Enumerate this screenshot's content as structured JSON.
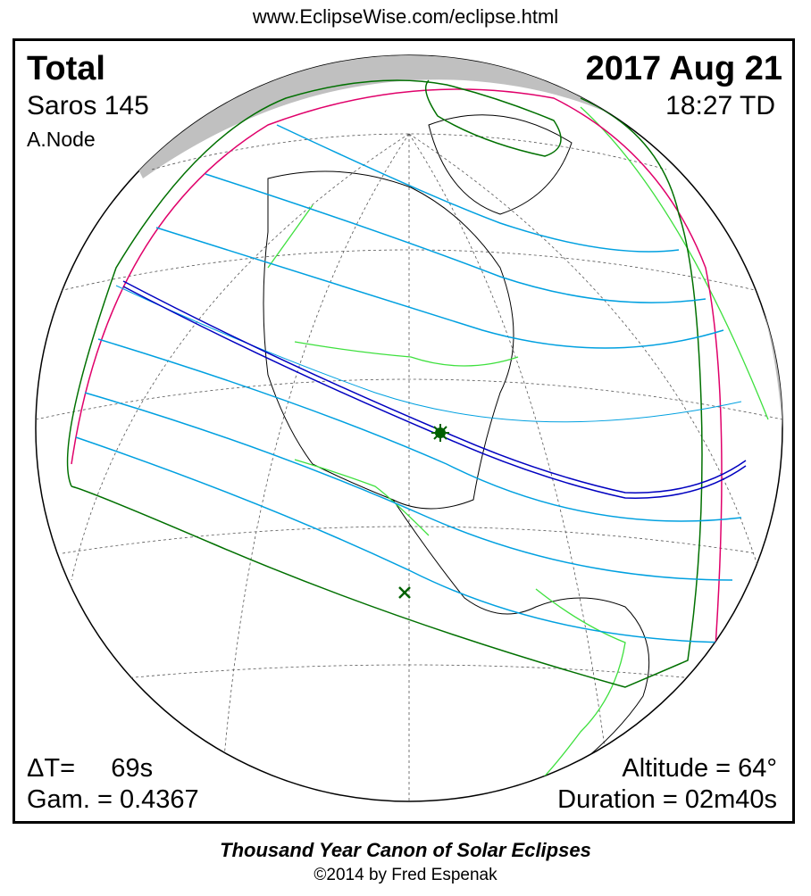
{
  "header": {
    "url": "www.EclipseWise.com/eclipse.html"
  },
  "eclipse": {
    "type": "Total",
    "saros": "Saros 145",
    "node": "A.Node",
    "date": "2017 Aug 21",
    "time": "18:27 TD",
    "delta_t": "ΔT=     69s",
    "gamma": "Gam. = 0.4367",
    "altitude": "Altitude = 64°",
    "duration": "Duration = 02m40s"
  },
  "map": {
    "colors": {
      "central_path": "#0000c0",
      "partial_limits": "#00a0e0",
      "penumbra_limits": "#007000",
      "rise_set_curve": "#e0006a",
      "borders": "#00e000",
      "night": "#c0c0c0"
    },
    "markers": [
      "greatest-eclipse-star",
      "greatest-duration-x"
    ]
  },
  "footer": {
    "title": "Thousand Year Canon of Solar Eclipses",
    "copyright": "©2014 by Fred Espenak"
  }
}
